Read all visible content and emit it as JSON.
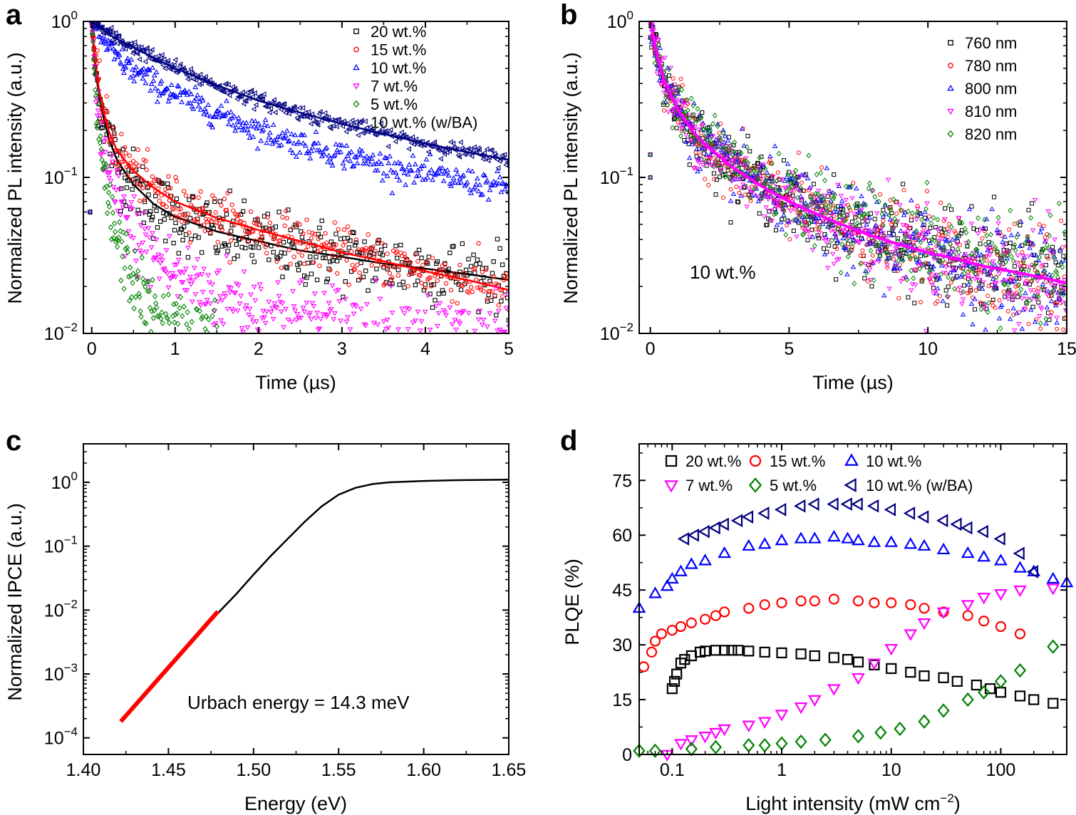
{
  "chart_data": [
    {
      "panel": "a",
      "type": "scatter",
      "yscale": "log",
      "xlabel": "Time (µs)",
      "ylabel": "Normalized PL intensity (a.u.)",
      "xlim": [
        -0.1,
        5
      ],
      "ylim": [
        0.01,
        1
      ],
      "xticks": [
        0,
        1,
        2,
        3,
        4,
        5
      ],
      "xtick_labels": [
        "0",
        "1",
        "2",
        "3",
        "4",
        "5"
      ],
      "yticks": [
        0.01,
        0.1,
        1
      ],
      "ytick_labels": [
        {
          "base": "10",
          "exp": "−2"
        },
        {
          "base": "10",
          "exp": "−1"
        },
        {
          "base": "10",
          "exp": "0"
        }
      ],
      "legend_position": "top-right",
      "series": [
        {
          "name": "20 wt.%",
          "color": "#000000",
          "marker": "square",
          "x": [
            0,
            0.05,
            0.1,
            0.2,
            0.3,
            0.5,
            0.75,
            1,
            1.5,
            2,
            2.5,
            3,
            3.5,
            4,
            4.5,
            5
          ],
          "y": [
            1,
            0.45,
            0.3,
            0.18,
            0.13,
            0.09,
            0.067,
            0.056,
            0.045,
            0.039,
            0.034,
            0.031,
            0.028,
            0.026,
            0.024,
            0.022
          ],
          "fit": true,
          "fit_color": "#000000"
        },
        {
          "name": "15 wt.%",
          "color": "#ff0000",
          "marker": "circle",
          "x": [
            0,
            0.05,
            0.1,
            0.2,
            0.3,
            0.5,
            0.75,
            1,
            1.5,
            2,
            2.5,
            3,
            3.5,
            4,
            4.5,
            5
          ],
          "y": [
            1,
            0.5,
            0.33,
            0.2,
            0.15,
            0.11,
            0.085,
            0.07,
            0.055,
            0.046,
            0.039,
            0.033,
            0.029,
            0.025,
            0.022,
            0.019
          ],
          "fit": true,
          "fit_color": "#ff0000"
        },
        {
          "name": "10 wt.%",
          "color": "#0000ff",
          "marker": "triangle-up",
          "x": [
            0,
            0.25,
            0.5,
            1,
            1.5,
            2,
            2.5,
            3,
            3.5,
            4,
            4.5,
            5
          ],
          "y": [
            1,
            0.62,
            0.48,
            0.34,
            0.26,
            0.2,
            0.165,
            0.14,
            0.12,
            0.105,
            0.094,
            0.085
          ],
          "fit": false
        },
        {
          "name": "7 wt.%",
          "color": "#ff00ff",
          "marker": "triangle-down",
          "x": [
            0,
            0.05,
            0.1,
            0.2,
            0.3,
            0.5,
            0.75,
            1,
            1.5,
            2,
            2.5,
            3,
            3.5,
            4,
            4.5,
            5
          ],
          "y": [
            1,
            0.38,
            0.2,
            0.1,
            0.07,
            0.045,
            0.031,
            0.024,
            0.018,
            0.015,
            0.013,
            0.012,
            0.011,
            0.0105,
            0.0102,
            0.01
          ],
          "fit": false
        },
        {
          "name": "5 wt.%",
          "color": "#008000",
          "marker": "diamond",
          "x": [
            0,
            0.05,
            0.1,
            0.2,
            0.3,
            0.4,
            0.5,
            0.6,
            0.7,
            0.8,
            0.9,
            1.1,
            1.3,
            1.5
          ],
          "y": [
            1,
            0.3,
            0.15,
            0.065,
            0.04,
            0.029,
            0.022,
            0.018,
            0.015,
            0.013,
            0.0118,
            0.0105,
            0.0101,
            0.01
          ],
          "fit": false
        },
        {
          "name": "10 wt.% (w/BA)",
          "color": "#000080",
          "marker": "triangle-left",
          "x": [
            0,
            0.25,
            0.5,
            1,
            1.5,
            2,
            2.5,
            3,
            3.5,
            4,
            4.5,
            5
          ],
          "y": [
            1,
            0.8,
            0.68,
            0.5,
            0.39,
            0.31,
            0.26,
            0.22,
            0.19,
            0.165,
            0.145,
            0.13
          ],
          "fit": true,
          "fit_color": "#000080"
        }
      ]
    },
    {
      "panel": "b",
      "type": "scatter",
      "yscale": "log",
      "xlabel": "Time (µs)",
      "ylabel": "Normalized PL intensity (a.u.)",
      "xlim": [
        -0.4,
        15
      ],
      "ylim": [
        0.01,
        1
      ],
      "xticks": [
        0,
        5,
        10,
        15
      ],
      "xtick_labels": [
        "0",
        "5",
        "10",
        "15"
      ],
      "yticks": [
        0.01,
        0.1,
        1
      ],
      "ytick_labels": [
        {
          "base": "10",
          "exp": "−2"
        },
        {
          "base": "10",
          "exp": "−1"
        },
        {
          "base": "10",
          "exp": "0"
        }
      ],
      "annotation": "10 wt.%",
      "legend_position": "top-right",
      "common_x": [
        0,
        0.25,
        0.5,
        1,
        1.5,
        2,
        3,
        4,
        5,
        6,
        7,
        8,
        9,
        10,
        11,
        12,
        13,
        14,
        15
      ],
      "series": [
        {
          "name": "760 nm",
          "color": "#000000",
          "marker": "square",
          "y": [
            1,
            0.6,
            0.42,
            0.27,
            0.2,
            0.16,
            0.115,
            0.088,
            0.07,
            0.058,
            0.049,
            0.042,
            0.037,
            0.033,
            0.03,
            0.027,
            0.025,
            0.023,
            0.021
          ],
          "fit": true,
          "fit_color": "#000000"
        },
        {
          "name": "780 nm",
          "color": "#ff0000",
          "marker": "circle",
          "y": [
            1,
            0.6,
            0.42,
            0.27,
            0.2,
            0.16,
            0.115,
            0.088,
            0.07,
            0.058,
            0.049,
            0.042,
            0.037,
            0.033,
            0.03,
            0.027,
            0.025,
            0.023,
            0.021
          ],
          "fit": false
        },
        {
          "name": "800 nm",
          "color": "#0000ff",
          "marker": "triangle-up",
          "y": [
            1,
            0.6,
            0.42,
            0.27,
            0.2,
            0.16,
            0.115,
            0.088,
            0.07,
            0.058,
            0.049,
            0.042,
            0.037,
            0.033,
            0.03,
            0.027,
            0.025,
            0.023,
            0.021
          ],
          "fit": false
        },
        {
          "name": "810 nm",
          "color": "#ff00ff",
          "marker": "triangle-down",
          "y": [
            1,
            0.6,
            0.42,
            0.27,
            0.2,
            0.16,
            0.115,
            0.088,
            0.07,
            0.058,
            0.049,
            0.042,
            0.037,
            0.033,
            0.03,
            0.027,
            0.025,
            0.023,
            0.021
          ],
          "fit": true,
          "fit_color": "#ff00ff"
        },
        {
          "name": "820 nm",
          "color": "#008000",
          "marker": "diamond",
          "y": [
            1,
            0.62,
            0.44,
            0.29,
            0.22,
            0.175,
            0.125,
            0.096,
            0.077,
            0.064,
            0.054,
            0.047,
            0.041,
            0.036,
            0.033,
            0.03,
            0.027,
            0.025,
            0.023
          ],
          "fit": false
        }
      ]
    },
    {
      "panel": "c",
      "type": "line",
      "yscale": "log",
      "xlabel": "Energy (eV)",
      "ylabel": "Normalized IPCE (a.u.)",
      "xlim": [
        1.4,
        1.65
      ],
      "ylim": [
        5.5e-05,
        4
      ],
      "xticks": [
        1.4,
        1.45,
        1.5,
        1.55,
        1.6,
        1.65
      ],
      "xtick_labels": [
        "1.40",
        "1.45",
        "1.50",
        "1.55",
        "1.60",
        "1.65"
      ],
      "yticks": [
        0.0001,
        0.001,
        0.01,
        0.1,
        1
      ],
      "ytick_labels": [
        {
          "base": "10",
          "exp": "−4"
        },
        {
          "base": "10",
          "exp": "−3"
        },
        {
          "base": "10",
          "exp": "−2"
        },
        {
          "base": "10",
          "exp": "−1"
        },
        {
          "base": "10",
          "exp": "0"
        }
      ],
      "annotation": "Urbach energy = 14.3 meV",
      "series": [
        {
          "name": "IPCE",
          "color": "#000000",
          "x": [
            1.422,
            1.44,
            1.46,
            1.48,
            1.49,
            1.5,
            1.51,
            1.52,
            1.53,
            1.54,
            1.55,
            1.56,
            1.57,
            1.58,
            1.6,
            1.62,
            1.65
          ],
          "y": [
            0.00018,
            0.00063,
            0.0024,
            0.0095,
            0.018,
            0.036,
            0.07,
            0.13,
            0.24,
            0.42,
            0.64,
            0.82,
            0.94,
            1.0,
            1.05,
            1.08,
            1.1
          ]
        },
        {
          "name": "Urbach fit",
          "color": "#ff0000",
          "x": [
            1.422,
            1.479
          ],
          "y": [
            0.00018,
            0.0095
          ]
        }
      ]
    },
    {
      "panel": "d",
      "type": "scatter",
      "xscale": "log",
      "xlabel": "Light intensity (mW cm",
      "xlabel_sup": "−2",
      "xlabel_end": ")",
      "ylabel": "PLQE (%)",
      "xlim": [
        0.05,
        400
      ],
      "ylim": [
        0,
        85
      ],
      "xticks": [
        0.1,
        1,
        10,
        100
      ],
      "xtick_labels": [
        "0.1",
        "1",
        "10",
        "100"
      ],
      "yticks": [
        0,
        15,
        30,
        45,
        60,
        75
      ],
      "ytick_labels": [
        "0",
        "15",
        "30",
        "45",
        "60",
        "75"
      ],
      "legend_position": "top",
      "series": [
        {
          "name": "20 wt.%",
          "color": "#000000",
          "marker": "square",
          "x": [
            0.1,
            0.105,
            0.11,
            0.12,
            0.13,
            0.15,
            0.18,
            0.2,
            0.25,
            0.3,
            0.35,
            0.4,
            0.5,
            0.7,
            1,
            1.5,
            2,
            3,
            4,
            5,
            7,
            10,
            15,
            20,
            30,
            40,
            60,
            80,
            100,
            150,
            200,
            300
          ],
          "y": [
            18,
            20,
            22,
            25,
            26,
            27,
            28,
            28.3,
            28.5,
            28.5,
            28.5,
            28.5,
            28.3,
            28,
            27.8,
            27.5,
            27,
            26.5,
            26,
            25.3,
            24.5,
            23.5,
            22.5,
            21.5,
            21,
            20,
            19,
            18,
            17,
            16,
            15,
            14
          ]
        },
        {
          "name": "15 wt.%",
          "color": "#ff0000",
          "marker": "circle",
          "x": [
            0.055,
            0.065,
            0.07,
            0.08,
            0.1,
            0.12,
            0.15,
            0.2,
            0.25,
            0.3,
            0.5,
            0.7,
            1,
            1.5,
            2,
            3,
            5,
            7,
            10,
            15,
            20,
            30,
            50,
            70,
            100,
            150
          ],
          "y": [
            24,
            28,
            31,
            33,
            34,
            35,
            36,
            37,
            38,
            39,
            40,
            41,
            41.5,
            42,
            42,
            42.5,
            42,
            41.5,
            41.5,
            41,
            40,
            39,
            38,
            36.5,
            35,
            33
          ]
        },
        {
          "name": "10 wt.%",
          "color": "#0000ff",
          "marker": "triangle-up",
          "x": [
            0.05,
            0.07,
            0.09,
            0.1,
            0.12,
            0.15,
            0.2,
            0.3,
            0.5,
            0.7,
            1,
            1.5,
            2,
            3,
            4,
            5,
            7,
            10,
            15,
            20,
            30,
            50,
            70,
            100,
            150,
            200,
            300,
            400
          ],
          "y": [
            40,
            44,
            46,
            48,
            50,
            52,
            53,
            55,
            57,
            57.5,
            58.5,
            59,
            59,
            59.5,
            59,
            58.5,
            58,
            58,
            57.5,
            57,
            56,
            55,
            54,
            53,
            51,
            50,
            48,
            47
          ]
        },
        {
          "name": "7 wt.%",
          "color": "#ff00ff",
          "marker": "triangle-down",
          "x": [
            0.09,
            0.12,
            0.15,
            0.2,
            0.25,
            0.3,
            0.5,
            0.7,
            1,
            1.5,
            2,
            3,
            5,
            7,
            10,
            15,
            20,
            30,
            50,
            70,
            100,
            150,
            300
          ],
          "y": [
            0,
            3,
            4,
            5,
            6,
            7,
            8,
            9,
            11,
            13,
            15,
            18,
            21,
            25,
            29,
            33,
            36,
            39,
            41,
            43,
            44,
            45,
            45.5
          ]
        },
        {
          "name": "5 wt.%",
          "color": "#008000",
          "marker": "diamond",
          "x": [
            0.05,
            0.07,
            0.15,
            0.25,
            0.5,
            0.7,
            1,
            1.5,
            2.5,
            5,
            8,
            12,
            20,
            30,
            50,
            70,
            100,
            150,
            300
          ],
          "y": [
            1,
            1,
            1.5,
            2,
            2.5,
            2.5,
            3,
            3.5,
            4,
            5,
            6,
            7,
            9,
            12,
            15,
            17,
            20,
            23,
            29.5
          ]
        },
        {
          "name": "10 wt.% (w/BA)",
          "color": "#000080",
          "marker": "triangle-left",
          "x": [
            0.13,
            0.16,
            0.2,
            0.25,
            0.3,
            0.4,
            0.5,
            0.7,
            1,
            1.5,
            2,
            3,
            4,
            5,
            7,
            10,
            15,
            20,
            30,
            40,
            50,
            70,
            100,
            150,
            200
          ],
          "y": [
            59,
            60,
            61,
            62,
            63,
            64,
            65,
            66,
            67,
            68,
            68.5,
            68.5,
            68.5,
            68.5,
            68,
            67,
            66,
            65,
            64,
            63,
            62,
            61,
            59,
            55,
            50
          ]
        }
      ]
    }
  ],
  "panel_letters": [
    "a",
    "b",
    "c",
    "d"
  ]
}
